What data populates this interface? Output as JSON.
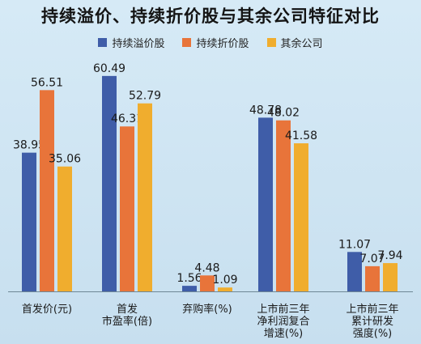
{
  "title": "持续溢价、持续折价股与其余公司特征对比",
  "colors": {
    "series_blue": "#3f5da8",
    "series_orange": "#e8743a",
    "series_yellow": "#f0ad2e"
  },
  "chart_data": {
    "type": "bar",
    "legend_position": "top",
    "grid": false,
    "categories": [
      [
        "首发价(元)"
      ],
      [
        "首发",
        "市盈率(倍)"
      ],
      [
        "弃购率(%)"
      ],
      [
        "上市前三年",
        "净利润复合",
        "增速(%)"
      ],
      [
        "上市前三年",
        "累计研发",
        "强度(%)"
      ]
    ],
    "series": [
      {
        "name": "持续溢价股",
        "color": "#3f5da8",
        "values": [
          38.95,
          60.49,
          1.56,
          48.78,
          11.07
        ],
        "labels": [
          "38.95",
          "60.49",
          "1.56",
          "48.78",
          "11.07"
        ]
      },
      {
        "name": "持续折价股",
        "color": "#e8743a",
        "values": [
          56.51,
          46.31,
          4.48,
          48.02,
          7.07
        ],
        "labels": [
          "56.51",
          "46.31",
          "4.48",
          "48.02",
          "7.07"
        ]
      },
      {
        "name": "其余公司",
        "color": "#f0ad2e",
        "values": [
          35.06,
          52.79,
          1.09,
          41.58,
          7.94
        ],
        "labels": [
          "35.06",
          "52.79",
          "1.09",
          "41.58",
          "7.94"
        ]
      }
    ]
  }
}
